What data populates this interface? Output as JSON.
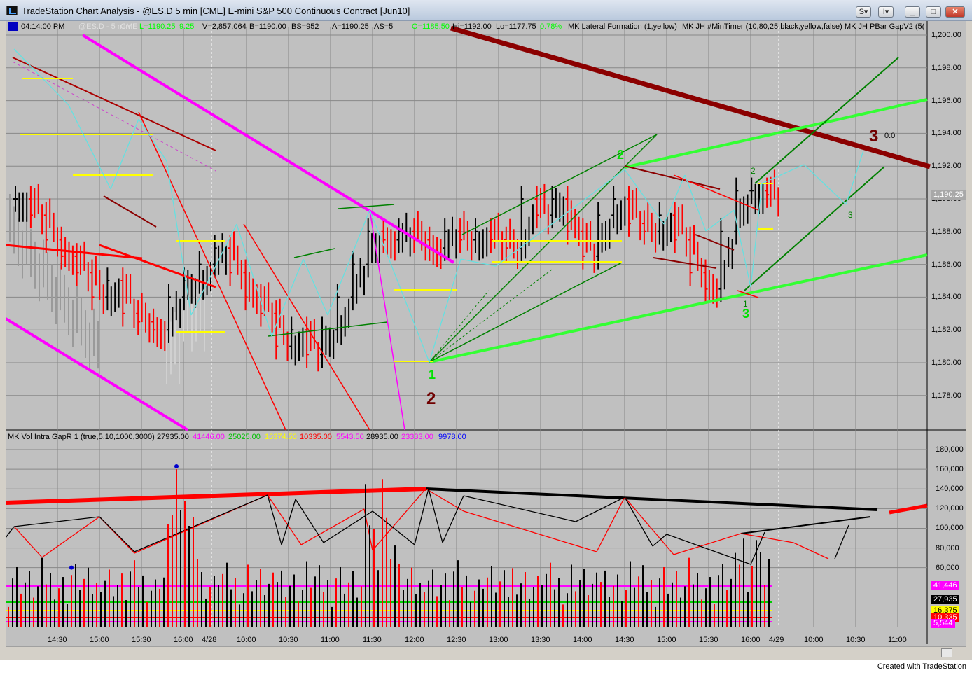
{
  "window": {
    "title": "TradeStation Chart Analysis - @ES.D 5 min [CME] E-mini S&P 500 Continuous Contract [Jun10]",
    "controls": [
      "S▾",
      "I▾",
      "_",
      "□",
      "✕"
    ]
  },
  "price_header": {
    "time": "04:14:00 PM",
    "symbol": "@ES.D - 5 min",
    "exchange": "CME",
    "last": "L=1190.25",
    "change": "9.25",
    "volume": "V=2,857,064",
    "bid": "B=1190.00",
    "bs": "BS=952",
    "ask": "A=1190.25",
    "as": "AS=5",
    "open": "O=1185.50",
    "high": "Hi=1192.00",
    "low": "Lo=1177.75",
    "pct": "0.78%",
    "indicators": [
      "MK Lateral Formation (1,yellow)",
      "MK JH #MinTimer (10,80,25,black,yellow,false)",
      "MK JH PBar GapV2 (5("
    ]
  },
  "volume_header": {
    "study": "MK Vol Intra GapR 1 (true,5,10,1000,3000)",
    "values": [
      {
        "text": "27935.00",
        "color": "#000000"
      },
      {
        "text": "41446.00",
        "color": "#ff00ff"
      },
      {
        "text": "25025.00",
        "color": "#00c000"
      },
      {
        "text": "16374.50",
        "color": "#ffff00"
      },
      {
        "text": "10335.00",
        "color": "#ff0000"
      },
      {
        "text": "5543.50",
        "color": "#ff00ff"
      },
      {
        "text": "28935.00",
        "color": "#000000"
      },
      {
        "text": "23333.00",
        "color": "#ff00ff"
      },
      {
        "text": "9978.00",
        "color": "#0000ff"
      }
    ]
  },
  "price_axis": {
    "labels": [
      "1,200.00",
      "1,198.00",
      "1,196.00",
      "1,194.00",
      "1,192.00",
      "1,190.00",
      "1,188.00",
      "1,186.00",
      "1,184.00",
      "1,182.00",
      "1,180.00",
      "1,178.00"
    ],
    "last_marker": "1,190.25"
  },
  "volume_axis": {
    "labels": [
      "180,000",
      "160,000",
      "140,000",
      "120,000",
      "100,000",
      "80,000",
      "60,000"
    ],
    "markers": [
      {
        "text": "41,446",
        "bg": "#ff00ff",
        "fg": "#ffffff"
      },
      {
        "text": "27,935",
        "bg": "#000000",
        "fg": "#ffffff"
      },
      {
        "text": "16,375",
        "bg": "#ffff00",
        "fg": "#000000"
      },
      {
        "text": "10,335",
        "bg": "#ff0000",
        "fg": "#ffffff"
      },
      {
        "text": "5,544",
        "bg": "#ff00ff",
        "fg": "#ffffff"
      }
    ]
  },
  "time_axis": {
    "labels": [
      "14:30",
      "15:00",
      "15:30",
      "16:00",
      "4/28",
      "10:00",
      "10:30",
      "11:00",
      "11:30",
      "12:00",
      "12:30",
      "13:00",
      "13:30",
      "14:00",
      "14:30",
      "15:00",
      "15:30",
      "16:00",
      "4/29",
      "10:00",
      "10:30",
      "11:00"
    ]
  },
  "annotations": {
    "wave_labels": [
      "1",
      "2",
      "2",
      "1",
      "3",
      "2",
      "3",
      "3",
      "0:0"
    ]
  },
  "footer": {
    "created_with": "Created with TradeStation"
  },
  "chart_data": {
    "type": "candlestick",
    "symbol": "@ES.D",
    "interval": "5 min",
    "ylim": [
      1176.5,
      1201
    ],
    "grid": true,
    "bars_approx_close": [
      1190,
      1189,
      1187.5,
      1186.5,
      1185.5,
      1184,
      1185,
      1183,
      1182.5,
      1182,
      1184,
      1185,
      1186,
      1187,
      1185.5,
      1184,
      1183,
      1181,
      1182,
      1180.5,
      1182,
      1184,
      1186,
      1188,
      1187.5,
      1188,
      1187.5,
      1187,
      1188,
      1187.5,
      1188,
      1187.5,
      1187,
      1190,
      1189,
      1190,
      1188,
      1186.5,
      1189,
      1190,
      1188.5,
      1188,
      1189,
      1187.5,
      1185.5,
      1184.5,
      1188,
      1190.5,
      1190.5,
      1190.25
    ],
    "volume_ylim": [
      0,
      190000
    ]
  }
}
